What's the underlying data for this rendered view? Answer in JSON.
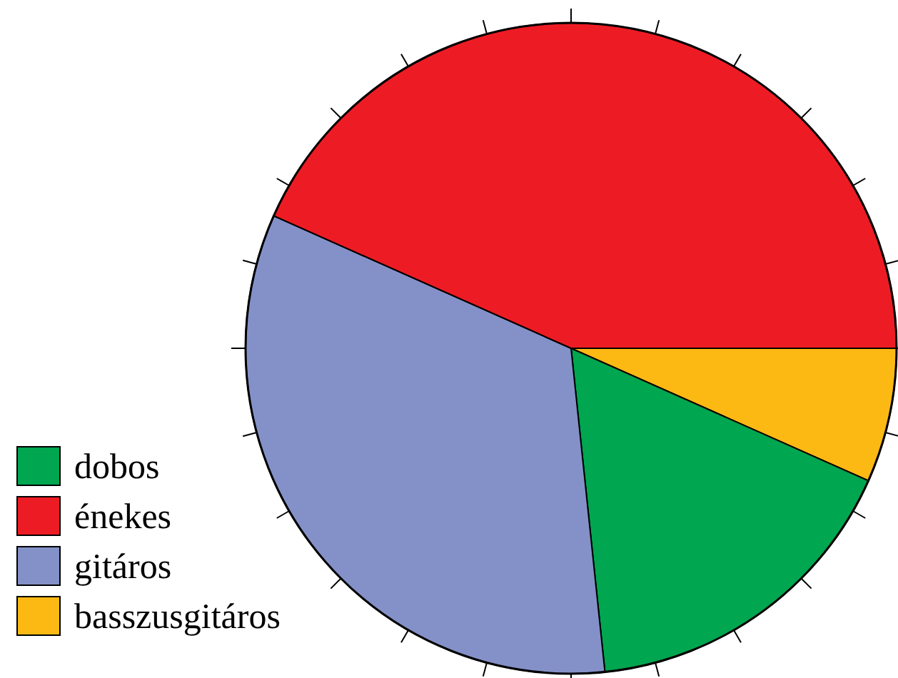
{
  "chart_data": {
    "type": "pie",
    "categories": [
      "dobos",
      "énekes",
      "gitáros",
      "basszusgitáros"
    ],
    "values": [
      16.67,
      43.33,
      33.33,
      6.67
    ],
    "colors": [
      "#00a650",
      "#ed1c24",
      "#8491c8",
      "#fdb913"
    ],
    "legend": "bottom left"
  }
}
